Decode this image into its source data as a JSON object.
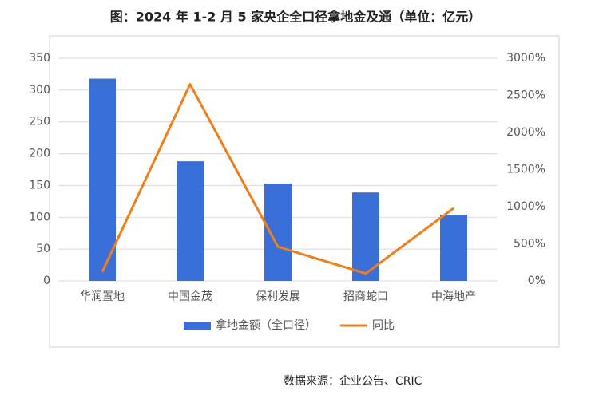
{
  "chart_data": {
    "type": "bar-line",
    "title": "图：2024 年 1-2 月 5 家央企全口径拿地金及通（单位：亿元）",
    "source": "数据来源：企业公告、CRIC",
    "categories": [
      "华润置地",
      "中国金茂",
      "保利发展",
      "招商蛇口",
      "中海地产"
    ],
    "series": [
      {
        "name": "拿地金额（全口径）",
        "type": "bar",
        "color": "#3a6fd8",
        "values": [
          318,
          188,
          153,
          139,
          104
        ]
      },
      {
        "name": "同比",
        "type": "line",
        "color": "#f07f1b",
        "axis": "y2",
        "values": [
          120,
          2650,
          460,
          100,
          980
        ]
      }
    ],
    "ylim": [
      0,
      350
    ],
    "yticks": [
      0,
      50,
      100,
      150,
      200,
      250,
      300,
      350
    ],
    "y2lim": [
      0,
      3000
    ],
    "y2ticks": [
      {
        "value": 0,
        "label": "0%"
      },
      {
        "value": 500,
        "label": "500%"
      },
      {
        "value": 1000,
        "label": "1000%"
      },
      {
        "value": 1500,
        "label": "1500%"
      },
      {
        "value": 2000,
        "label": "2000%"
      },
      {
        "value": 2500,
        "label": "2500%"
      },
      {
        "value": 3000,
        "label": "3000%"
      }
    ],
    "grid": true,
    "legend": "bottom"
  }
}
